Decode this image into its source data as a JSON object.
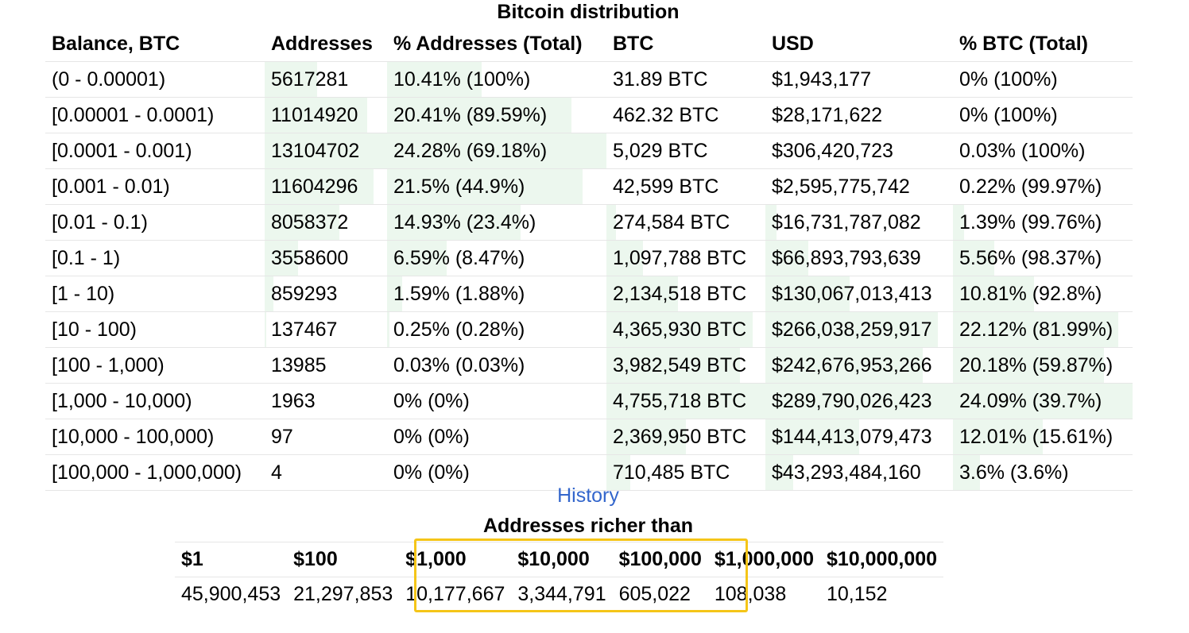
{
  "title": "Bitcoin distribution",
  "main_table": {
    "headers": [
      "Balance, BTC",
      "Addresses",
      "% Addresses (Total)",
      "BTC",
      "USD",
      "% BTC (Total)"
    ],
    "rows": [
      {
        "balance": "(0 - 0.00001)",
        "addresses": "5617281",
        "pct_addresses": "10.41% (100%)",
        "btc": "31.89 BTC",
        "usd": "$1,943,177",
        "pct_btc": "0% (100%)",
        "share": {
          "addresses": 0.43,
          "pct_addresses": 0.43,
          "btc": 0.0,
          "usd": 0.0,
          "pct_btc": 0.0
        }
      },
      {
        "balance": "[0.00001 - 0.0001)",
        "addresses": "11014920",
        "pct_addresses": "20.41% (89.59%)",
        "btc": "462.32 BTC",
        "usd": "$28,171,622",
        "pct_btc": "0% (100%)",
        "share": {
          "addresses": 0.84,
          "pct_addresses": 0.84,
          "btc": 0.0,
          "usd": 0.0,
          "pct_btc": 0.0
        }
      },
      {
        "balance": "[0.0001 - 0.001)",
        "addresses": "13104702",
        "pct_addresses": "24.28% (69.18%)",
        "btc": "5,029 BTC",
        "usd": "$306,420,723",
        "pct_btc": "0.03% (100%)",
        "share": {
          "addresses": 1.0,
          "pct_addresses": 1.0,
          "btc": 0.0,
          "usd": 0.0,
          "pct_btc": 0.0
        }
      },
      {
        "balance": "[0.001 - 0.01)",
        "addresses": "11604296",
        "pct_addresses": "21.5% (44.9%)",
        "btc": "42,599 BTC",
        "usd": "$2,595,775,742",
        "pct_btc": "0.22% (99.97%)",
        "share": {
          "addresses": 0.89,
          "pct_addresses": 0.89,
          "btc": 0.0,
          "usd": 0.0,
          "pct_btc": 0.0
        }
      },
      {
        "balance": "[0.01 - 0.1)",
        "addresses": "8058372",
        "pct_addresses": "14.93% (23.4%)",
        "btc": "274,584 BTC",
        "usd": "$16,731,787,082",
        "pct_btc": "1.39% (99.76%)",
        "share": {
          "addresses": 0.61,
          "pct_addresses": 0.61,
          "btc": 0.06,
          "usd": 0.06,
          "pct_btc": 0.06
        }
      },
      {
        "balance": "[0.1 - 1)",
        "addresses": "3558600",
        "pct_addresses": "6.59% (8.47%)",
        "btc": "1,097,788 BTC",
        "usd": "$66,893,793,639",
        "pct_btc": "5.56% (98.37%)",
        "share": {
          "addresses": 0.27,
          "pct_addresses": 0.27,
          "btc": 0.23,
          "usd": 0.23,
          "pct_btc": 0.23
        }
      },
      {
        "balance": "[1 - 10)",
        "addresses": "859293",
        "pct_addresses": "1.59% (1.88%)",
        "btc": "2,134,518 BTC",
        "usd": "$130,067,013,413",
        "pct_btc": "10.81% (92.8%)",
        "share": {
          "addresses": 0.07,
          "pct_addresses": 0.07,
          "btc": 0.45,
          "usd": 0.45,
          "pct_btc": 0.45
        }
      },
      {
        "balance": "[10 - 100)",
        "addresses": "137467",
        "pct_addresses": "0.25% (0.28%)",
        "btc": "4,365,930 BTC",
        "usd": "$266,038,259,917",
        "pct_btc": "22.12% (81.99%)",
        "share": {
          "addresses": 0.01,
          "pct_addresses": 0.01,
          "btc": 0.92,
          "usd": 0.92,
          "pct_btc": 0.92
        }
      },
      {
        "balance": "[100 - 1,000)",
        "addresses": "13985",
        "pct_addresses": "0.03% (0.03%)",
        "btc": "3,982,549 BTC",
        "usd": "$242,676,953,266",
        "pct_btc": "20.18% (59.87%)",
        "share": {
          "addresses": 0.0,
          "pct_addresses": 0.0,
          "btc": 0.84,
          "usd": 0.84,
          "pct_btc": 0.84
        }
      },
      {
        "balance": "[1,000 - 10,000)",
        "addresses": "1963",
        "pct_addresses": "0% (0%)",
        "btc": "4,755,718 BTC",
        "usd": "$289,790,026,423",
        "pct_btc": "24.09% (39.7%)",
        "share": {
          "addresses": 0.0,
          "pct_addresses": 0.0,
          "btc": 1.0,
          "usd": 1.0,
          "pct_btc": 1.0
        }
      },
      {
        "balance": "[10,000 - 100,000)",
        "addresses": "97",
        "pct_addresses": "0% (0%)",
        "btc": "2,369,950 BTC",
        "usd": "$144,413,079,473",
        "pct_btc": "12.01% (15.61%)",
        "share": {
          "addresses": 0.0,
          "pct_addresses": 0.0,
          "btc": 0.5,
          "usd": 0.5,
          "pct_btc": 0.5
        }
      },
      {
        "balance": "[100,000 - 1,000,000)",
        "addresses": "4",
        "pct_addresses": "0% (0%)",
        "btc": "710,485 BTC",
        "usd": "$43,293,484,160",
        "pct_btc": "3.6% (3.6%)",
        "share": {
          "addresses": 0.0,
          "pct_addresses": 0.0,
          "btc": 0.15,
          "usd": 0.15,
          "pct_btc": 0.15
        }
      }
    ]
  },
  "history_link": "History",
  "rich_title": "Addresses richer than",
  "rich_table": {
    "headers": [
      "$1",
      "$100",
      "$1,000",
      "$10,000",
      "$100,000",
      "$1,000,000",
      "$10,000,000"
    ],
    "values": [
      "45,900,453",
      "21,297,853",
      "10,177,667",
      "3,344,791",
      "605,022",
      "108,038",
      "10,152"
    ]
  },
  "colors": {
    "bar": "#ecf7ee",
    "link": "#3366cc",
    "highlight": "#f5c518"
  }
}
